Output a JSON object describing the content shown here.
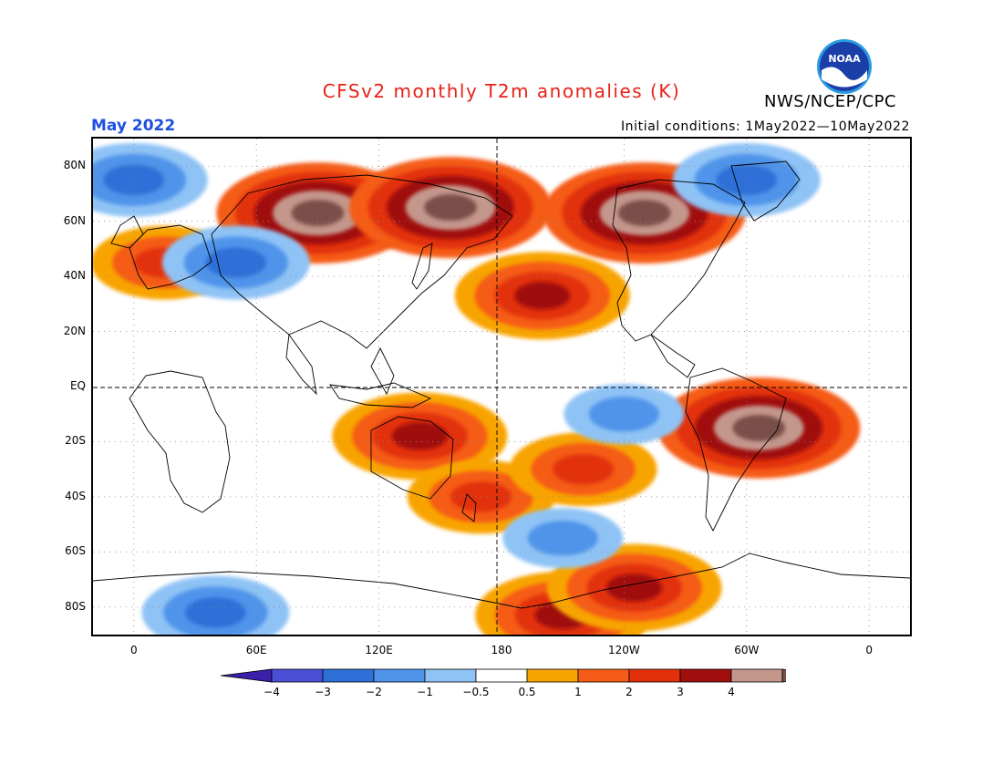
{
  "header": {
    "title": "CFSv2 monthly T2m anomalies (K)",
    "title_color": "#e8211a",
    "agency": "NWS/NCEP/CPC",
    "logo_text": "NOAA",
    "month": "May 2022",
    "month_color": "#1f4fe0",
    "initial_conditions": "Initial conditions: 1May2022—10May2022"
  },
  "map": {
    "lat_labels": [
      "80N",
      "60N",
      "40N",
      "20N",
      "EQ",
      "20S",
      "40S",
      "60S",
      "80S"
    ],
    "lon_labels": [
      "0",
      "60E",
      "120E",
      "180",
      "120W",
      "60W",
      "0"
    ],
    "anomaly_regions": [
      {
        "name": "siberia-warm",
        "lon": 90,
        "lat": 63,
        "value": 4
      },
      {
        "name": "east-siberia-warm",
        "lon": 155,
        "lat": 65,
        "value": 4
      },
      {
        "name": "canada-warm",
        "lon": 250,
        "lat": 63,
        "value": 4
      },
      {
        "name": "south-america-warm",
        "lon": 306,
        "lat": -15,
        "value": 4
      },
      {
        "name": "north-pacific-warm",
        "lon": 200,
        "lat": 33,
        "value": 3
      },
      {
        "name": "europe-warm",
        "lon": 15,
        "lat": 45,
        "value": 2
      },
      {
        "name": "australia-warm",
        "lon": 140,
        "lat": -18,
        "value": 3
      },
      {
        "name": "sw-pacific-warm",
        "lon": 170,
        "lat": -40,
        "value": 2
      },
      {
        "name": "south-pacific-warm",
        "lon": 220,
        "lat": -30,
        "value": 2
      },
      {
        "name": "antarctic-warm",
        "lon": 210,
        "lat": -83,
        "value": 3
      },
      {
        "name": "west-antarctic-warm",
        "lon": 245,
        "lat": -73,
        "value": 3
      },
      {
        "name": "central-asia-cool",
        "lon": 50,
        "lat": 45,
        "value": -2
      },
      {
        "name": "arctic-atlantic-cool",
        "lon": 0,
        "lat": 75,
        "value": -2
      },
      {
        "name": "east-pacific-cool",
        "lon": 240,
        "lat": -10,
        "value": -1
      },
      {
        "name": "southern-ocean-cool",
        "lon": 210,
        "lat": -55,
        "value": -1
      },
      {
        "name": "east-antarctic-cool",
        "lon": 40,
        "lat": -82,
        "value": -2
      },
      {
        "name": "west-atlantic-cool",
        "lon": 300,
        "lat": 75,
        "value": -2
      }
    ]
  },
  "colorbar": {
    "labels": [
      "−4",
      "−3",
      "−2",
      "−1",
      "−0.5",
      "0.5",
      "1",
      "2",
      "3",
      "4"
    ],
    "colors": [
      "#3c1fa8",
      "#4a4fd6",
      "#2f6fd8",
      "#4f94ea",
      "#8fc3f5",
      "#ffffff",
      "#f8a400",
      "#f55b16",
      "#e2300d",
      "#a00e0e",
      "#c4978c",
      "#7a5048"
    ]
  }
}
